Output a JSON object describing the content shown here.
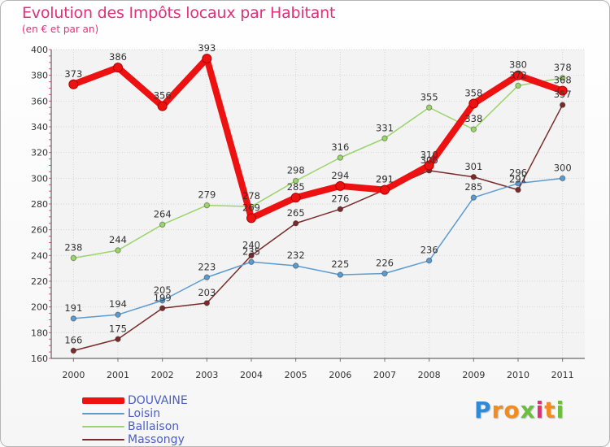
{
  "header": {
    "title": "Evolution des Impôts locaux par Habitant",
    "subtitle": "(en € et par an)"
  },
  "logo": {
    "letters": [
      "P",
      "r",
      "o",
      "x",
      "i",
      "t",
      "i"
    ],
    "colors": [
      "#2e8ad8",
      "#f28c1e",
      "#f28c1e",
      "#6bbf3a",
      "#e0307a",
      "#f28c1e",
      "#6bbf3a"
    ]
  },
  "chart_data": {
    "type": "line",
    "title": "Evolution des Impôts locaux par Habitant",
    "subtitle": "(en € et par an)",
    "xlabel": "",
    "ylabel": "",
    "categories": [
      "2000",
      "2001",
      "2002",
      "2003",
      "2004",
      "2005",
      "2006",
      "2007",
      "2008",
      "2009",
      "2010",
      "2011"
    ],
    "ylim": [
      160,
      400
    ],
    "yticks": [
      160,
      180,
      200,
      220,
      240,
      260,
      280,
      300,
      320,
      340,
      360,
      380,
      400
    ],
    "grid": true,
    "legend_position": "bottom-left",
    "series": [
      {
        "name": "Massongy",
        "color": "#7a2b2b",
        "values": [
          166,
          175,
          199,
          203,
          240,
          265,
          276,
          291,
          306,
          301,
          291,
          357
        ],
        "labels": [
          "166",
          "175",
          "199",
          "203",
          "240",
          "265",
          "276",
          "291",
          "306",
          "301",
          "291",
          "357"
        ]
      },
      {
        "name": "Loisin",
        "color": "#5b9bd0",
        "values": [
          191,
          194,
          205,
          223,
          235,
          232,
          225,
          226,
          236,
          285,
          296,
          300
        ],
        "labels": [
          "191",
          "194",
          "205",
          "223",
          "235",
          "232",
          "225",
          "226",
          "236",
          "285",
          "296",
          "300"
        ]
      },
      {
        "name": "Ballaison",
        "color": "#9ad46a",
        "values": [
          238,
          244,
          264,
          279,
          278,
          298,
          316,
          331,
          355,
          338,
          372,
          378
        ],
        "labels": [
          "238",
          "244",
          "264",
          "279",
          "278",
          "298",
          "316",
          "331",
          "355",
          "338",
          "372",
          "378"
        ]
      },
      {
        "name": "DOUVAINE",
        "color": "#ee1111",
        "values": [
          373,
          386,
          356,
          393,
          269,
          285,
          294,
          291,
          310,
          358,
          380,
          368
        ],
        "labels": [
          "373",
          "386",
          "356",
          "393",
          "269",
          "285",
          "294",
          "291",
          "310",
          "358",
          "380",
          "368"
        ]
      }
    ],
    "legend_order": [
      "DOUVAINE",
      "Loisin",
      "Ballaison",
      "Massongy"
    ]
  }
}
